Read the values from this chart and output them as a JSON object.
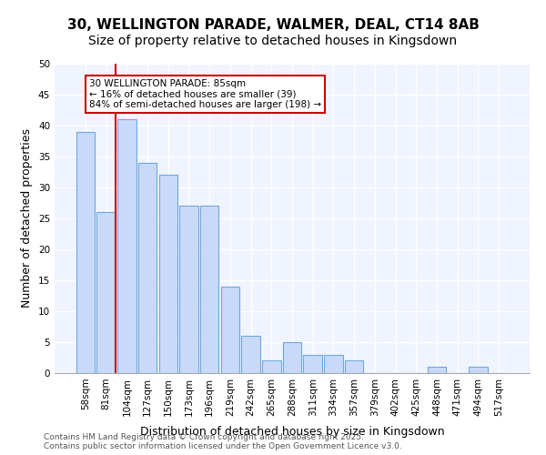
{
  "title_line1": "30, WELLINGTON PARADE, WALMER, DEAL, CT14 8AB",
  "title_line2": "Size of property relative to detached houses in Kingsdown",
  "xlabel": "Distribution of detached houses by size in Kingsdown",
  "ylabel": "Number of detached properties",
  "categories": [
    "58sqm",
    "81sqm",
    "104sqm",
    "127sqm",
    "150sqm",
    "173sqm",
    "196sqm",
    "219sqm",
    "242sqm",
    "265sqm",
    "288sqm",
    "311sqm",
    "334sqm",
    "357sqm",
    "379sqm",
    "402sqm",
    "425sqm",
    "448sqm",
    "471sqm",
    "494sqm",
    "517sqm"
  ],
  "values": [
    39,
    26,
    41,
    34,
    32,
    27,
    27,
    14,
    6,
    2,
    5,
    3,
    3,
    2,
    0,
    0,
    0,
    1,
    0,
    1,
    0
  ],
  "bar_color": "#c9daf8",
  "bar_edge_color": "#6fa8dc",
  "highlight_index": 1,
  "highlight_bar_color": "#c9daf8",
  "vline_x": 1,
  "vline_color": "#cc0000",
  "annotation_text": "30 WELLINGTON PARADE: 85sqm\n← 16% of detached houses are smaller (39)\n84% of semi-detached houses are larger (198) →",
  "annotation_box_color": "#ffffff",
  "annotation_box_edge_color": "#cc0000",
  "ylim": [
    0,
    50
  ],
  "yticks": [
    0,
    5,
    10,
    15,
    20,
    25,
    30,
    35,
    40,
    45,
    50
  ],
  "background_color": "#f0f4ff",
  "grid_color": "#ffffff",
  "footer_text": "Contains HM Land Registry data © Crown copyright and database right 2025.\nContains public sector information licensed under the Open Government Licence v3.0.",
  "title_fontsize": 11,
  "subtitle_fontsize": 10,
  "xlabel_fontsize": 9,
  "ylabel_fontsize": 9,
  "tick_fontsize": 7.5,
  "annotation_fontsize": 7.5,
  "footer_fontsize": 6.5
}
